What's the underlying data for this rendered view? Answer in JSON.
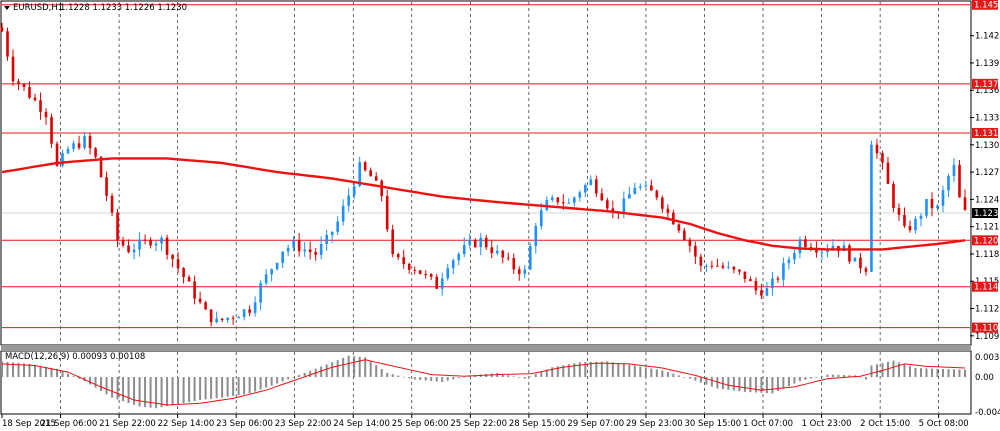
{
  "header": {
    "symbol": "EURUSD,H1",
    "ohlc": "1.1228 1.1233 1.1226 1.1230"
  },
  "macd_header": "MACD(12,26,9) 0.00093 0.00108",
  "colors": {
    "bull": "#1e90ff",
    "bear": "#dd0000",
    "ma": "#ee1111",
    "level_line": "#e01818",
    "grid": "#000000",
    "hist": "#8c8c8c",
    "signal": "#ee1111"
  },
  "chart_data": [
    {
      "type": "candlestick",
      "title": "EURUSD,H1",
      "ylim": [
        1.1086,
        1.1462
      ],
      "y_ticks": [
        "1.1425",
        "1.1395",
        "1.1365",
        "1.1335",
        "1.1305",
        "1.1275",
        "1.1245",
        "1.1215",
        "1.1185",
        "1.1155",
        "1.1125",
        "1.1095"
      ],
      "current_price": "1.1230",
      "horizontal_levels": [
        "1.1459",
        "1.1372",
        "1.1318",
        "1.1200",
        "1.1149",
        "1.1104"
      ],
      "x_tick_labels": [
        "18 Sep 2015",
        "21 Sep 06:00",
        "21 Sep 22:00",
        "22 Sep 14:00",
        "23 Sep 06:00",
        "23 Sep 22:00",
        "24 Sep 14:00",
        "25 Sep 06:00",
        "25 Sep 22:00",
        "28 Sep 15:00",
        "29 Sep 07:00",
        "29 Sep 23:00",
        "30 Sep 15:00",
        "1 Oct 07:00",
        "1 Oct 23:00",
        "2 Oct 15:00",
        "5 Oct 08:00"
      ],
      "close_path": [
        [
          0,
          1.143
        ],
        [
          2,
          1.138
        ],
        [
          5,
          1.136
        ],
        [
          8,
          1.134
        ],
        [
          10,
          1.128
        ],
        [
          12,
          1.13
        ],
        [
          15,
          1.131
        ],
        [
          17,
          1.129
        ],
        [
          19,
          1.125
        ],
        [
          21,
          1.12
        ],
        [
          23,
          1.119
        ],
        [
          25,
          1.1195
        ],
        [
          27,
          1.12
        ],
        [
          29,
          1.12
        ],
        [
          31,
          1.118
        ],
        [
          33,
          1.116
        ],
        [
          35,
          1.114
        ],
        [
          37,
          1.112
        ],
        [
          39,
          1.111
        ],
        [
          41,
          1.1115
        ],
        [
          43,
          1.112
        ],
        [
          45,
          1.1125
        ],
        [
          47,
          1.115
        ],
        [
          49,
          1.117
        ],
        [
          51,
          1.119
        ],
        [
          53,
          1.1195
        ],
        [
          55,
          1.119
        ],
        [
          57,
          1.1185
        ],
        [
          59,
          1.12
        ],
        [
          61,
          1.122
        ],
        [
          63,
          1.125
        ],
        [
          65,
          1.128
        ],
        [
          67,
          1.127
        ],
        [
          69,
          1.125
        ],
        [
          71,
          1.118
        ],
        [
          73,
          1.1175
        ],
        [
          75,
          1.117
        ],
        [
          77,
          1.116
        ],
        [
          79,
          1.115
        ],
        [
          81,
          1.1175
        ],
        [
          83,
          1.1185
        ],
        [
          85,
          1.1195
        ],
        [
          87,
          1.12
        ],
        [
          89,
          1.119
        ],
        [
          91,
          1.118
        ],
        [
          93,
          1.117
        ],
        [
          95,
          1.1165
        ],
        [
          97,
          1.122
        ],
        [
          99,
          1.124
        ],
        [
          101,
          1.1245
        ],
        [
          103,
          1.124
        ],
        [
          105,
          1.1255
        ],
        [
          107,
          1.1265
        ],
        [
          109,
          1.125
        ],
        [
          111,
          1.123
        ],
        [
          113,
          1.124
        ],
        [
          115,
          1.126
        ],
        [
          117,
          1.1255
        ],
        [
          119,
          1.125
        ],
        [
          121,
          1.123
        ],
        [
          123,
          1.1215
        ],
        [
          125,
          1.1195
        ],
        [
          127,
          1.117
        ],
        [
          129,
          1.1175
        ],
        [
          131,
          1.117
        ],
        [
          133,
          1.1165
        ],
        [
          135,
          1.116
        ],
        [
          137,
          1.1145
        ],
        [
          139,
          1.1145
        ],
        [
          141,
          1.116
        ],
        [
          143,
          1.118
        ],
        [
          145,
          1.12
        ],
        [
          147,
          1.1195
        ],
        [
          149,
          1.119
        ],
        [
          151,
          1.1195
        ],
        [
          153,
          1.119
        ],
        [
          155,
          1.1175
        ],
        [
          157,
          1.117
        ],
        [
          158,
          1.131
        ],
        [
          160,
          1.128
        ],
        [
          162,
          1.124
        ],
        [
          164,
          1.121
        ],
        [
          166,
          1.122
        ],
        [
          168,
          1.124
        ],
        [
          170,
          1.1235
        ],
        [
          172,
          1.127
        ],
        [
          173,
          1.128
        ],
        [
          174,
          1.1245
        ],
        [
          175,
          1.123
        ]
      ],
      "moving_average": [
        [
          0,
          1.1275
        ],
        [
          10,
          1.1285
        ],
        [
          20,
          1.129
        ],
        [
          30,
          1.129
        ],
        [
          40,
          1.1285
        ],
        [
          50,
          1.1275
        ],
        [
          60,
          1.1268
        ],
        [
          70,
          1.1258
        ],
        [
          80,
          1.1248
        ],
        [
          90,
          1.1242
        ],
        [
          100,
          1.1237
        ],
        [
          110,
          1.1232
        ],
        [
          120,
          1.1225
        ],
        [
          125,
          1.1218
        ],
        [
          130,
          1.1208
        ],
        [
          135,
          1.12
        ],
        [
          140,
          1.1194
        ],
        [
          145,
          1.1191
        ],
        [
          150,
          1.119
        ],
        [
          155,
          1.119
        ],
        [
          160,
          1.119
        ],
        [
          165,
          1.1193
        ],
        [
          170,
          1.1196
        ],
        [
          175,
          1.12
        ]
      ]
    },
    {
      "type": "histogram",
      "title": "MACD(12,26,9) 0.00093 0.00108",
      "ylim": [
        -0.00438,
        0.00305
      ],
      "y_ticks": [
        "0.00305",
        "0.00",
        "-0.00438"
      ],
      "hist_path": [
        [
          0,
          0.0019
        ],
        [
          5,
          0.0016
        ],
        [
          10,
          0.001
        ],
        [
          15,
          -0.0005
        ],
        [
          20,
          -0.0025
        ],
        [
          25,
          -0.0036
        ],
        [
          28,
          -0.0038
        ],
        [
          32,
          -0.0033
        ],
        [
          36,
          -0.0028
        ],
        [
          40,
          -0.0025
        ],
        [
          45,
          -0.002
        ],
        [
          50,
          -0.0008
        ],
        [
          55,
          0.0005
        ],
        [
          60,
          0.0018
        ],
        [
          63,
          0.0026
        ],
        [
          66,
          0.0024
        ],
        [
          70,
          0.0005
        ],
        [
          75,
          -0.0003
        ],
        [
          80,
          -0.0006
        ],
        [
          85,
          0.0002
        ],
        [
          90,
          0.0005
        ],
        [
          95,
          -0.0002
        ],
        [
          100,
          0.0012
        ],
        [
          105,
          0.0018
        ],
        [
          110,
          0.0019
        ],
        [
          115,
          0.0014
        ],
        [
          120,
          0.0008
        ],
        [
          125,
          -0.0002
        ],
        [
          130,
          -0.0014
        ],
        [
          135,
          -0.0018
        ],
        [
          140,
          -0.002
        ],
        [
          145,
          -0.0005
        ],
        [
          150,
          0.0003
        ],
        [
          155,
          0.0002
        ],
        [
          157,
          -0.0003
        ],
        [
          158,
          0.0014
        ],
        [
          162,
          0.002
        ],
        [
          166,
          0.0011
        ],
        [
          170,
          0.001
        ],
        [
          175,
          0.0009
        ]
      ],
      "signal_path": [
        [
          0,
          0.0016
        ],
        [
          6,
          0.0014
        ],
        [
          12,
          0.0006
        ],
        [
          18,
          -0.0012
        ],
        [
          24,
          -0.0028
        ],
        [
          30,
          -0.0034
        ],
        [
          36,
          -0.0032
        ],
        [
          42,
          -0.0026
        ],
        [
          48,
          -0.0016
        ],
        [
          54,
          -0.0002
        ],
        [
          60,
          0.0012
        ],
        [
          66,
          0.0021
        ],
        [
          72,
          0.0012
        ],
        [
          78,
          0.0003
        ],
        [
          84,
          0.0001
        ],
        [
          90,
          0.0003
        ],
        [
          96,
          0.0004
        ],
        [
          102,
          0.0012
        ],
        [
          108,
          0.0017
        ],
        [
          114,
          0.0016
        ],
        [
          120,
          0.0011
        ],
        [
          126,
          0.0002
        ],
        [
          132,
          -0.001
        ],
        [
          138,
          -0.0016
        ],
        [
          144,
          -0.0012
        ],
        [
          150,
          -0.0002
        ],
        [
          156,
          0.0001
        ],
        [
          160,
          0.0008
        ],
        [
          164,
          0.0016
        ],
        [
          168,
          0.0013
        ],
        [
          175,
          0.0011
        ]
      ]
    }
  ]
}
